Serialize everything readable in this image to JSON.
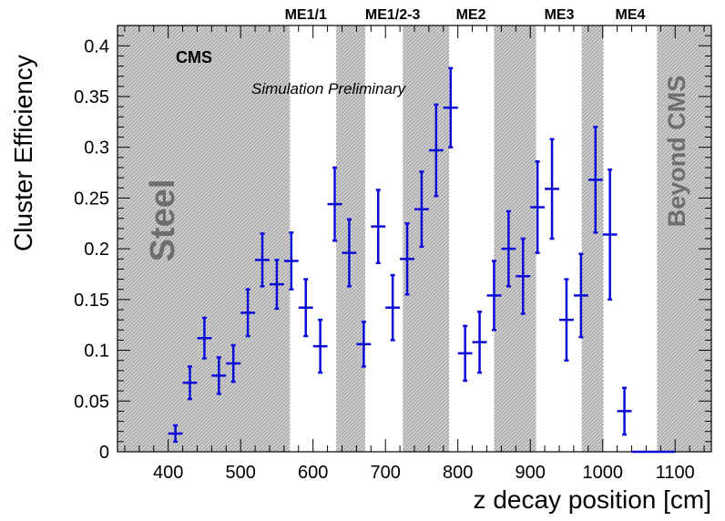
{
  "chart_data": {
    "type": "scatter",
    "xlabel": "z decay position [cm]",
    "ylabel": "Cluster Efficiency",
    "xlim": [
      330,
      1150
    ],
    "ylim": [
      0,
      0.42
    ],
    "grid": false,
    "legend": "none",
    "x_ticks": [
      400,
      500,
      600,
      700,
      800,
      900,
      1000,
      1100
    ],
    "y_ticks": [
      0,
      0.05,
      0.1,
      0.15,
      0.2,
      0.25,
      0.3,
      0.35,
      0.4
    ],
    "x_tick_labels": [
      "400",
      "500",
      "600",
      "700",
      "800",
      "900",
      "1000",
      "1100"
    ],
    "y_tick_labels": [
      "0",
      "0.05",
      "0.1",
      "0.15",
      "0.2",
      "0.25",
      "0.3",
      "0.35",
      "0.4"
    ],
    "points": [
      {
        "x": 410,
        "xerr": 10,
        "y": 0.018,
        "yerr": 0.008
      },
      {
        "x": 430,
        "xerr": 10,
        "y": 0.068,
        "yerr": 0.016
      },
      {
        "x": 450,
        "xerr": 10,
        "y": 0.112,
        "yerr": 0.02
      },
      {
        "x": 470,
        "xerr": 10,
        "y": 0.075,
        "yerr": 0.018
      },
      {
        "x": 490,
        "xerr": 10,
        "y": 0.087,
        "yerr": 0.018
      },
      {
        "x": 510,
        "xerr": 10,
        "y": 0.137,
        "yerr": 0.023
      },
      {
        "x": 530,
        "xerr": 10,
        "y": 0.189,
        "yerr": 0.026
      },
      {
        "x": 550,
        "xerr": 10,
        "y": 0.165,
        "yerr": 0.024
      },
      {
        "x": 570,
        "xerr": 10,
        "y": 0.188,
        "yerr": 0.028
      },
      {
        "x": 590,
        "xerr": 10,
        "y": 0.142,
        "yerr": 0.028
      },
      {
        "x": 610,
        "xerr": 10,
        "y": 0.104,
        "yerr": 0.026
      },
      {
        "x": 630,
        "xerr": 10,
        "y": 0.244,
        "yerr": 0.036
      },
      {
        "x": 650,
        "xerr": 10,
        "y": 0.196,
        "yerr": 0.033
      },
      {
        "x": 670,
        "xerr": 10,
        "y": 0.106,
        "yerr": 0.022
      },
      {
        "x": 690,
        "xerr": 10,
        "y": 0.222,
        "yerr": 0.036
      },
      {
        "x": 710,
        "xerr": 10,
        "y": 0.142,
        "yerr": 0.032
      },
      {
        "x": 730,
        "xerr": 10,
        "y": 0.19,
        "yerr": 0.035
      },
      {
        "x": 750,
        "xerr": 10,
        "y": 0.239,
        "yerr": 0.037
      },
      {
        "x": 770,
        "xerr": 10,
        "y": 0.297,
        "yerr": 0.045
      },
      {
        "x": 790,
        "xerr": 10,
        "y": 0.339,
        "yerr": 0.039
      },
      {
        "x": 810,
        "xerr": 10,
        "y": 0.097,
        "yerr": 0.027
      },
      {
        "x": 830,
        "xerr": 10,
        "y": 0.108,
        "yerr": 0.03
      },
      {
        "x": 850,
        "xerr": 10,
        "y": 0.154,
        "yerr": 0.034
      },
      {
        "x": 870,
        "xerr": 10,
        "y": 0.2,
        "yerr": 0.037
      },
      {
        "x": 890,
        "xerr": 10,
        "y": 0.173,
        "yerr": 0.037
      },
      {
        "x": 910,
        "xerr": 10,
        "y": 0.241,
        "yerr": 0.045
      },
      {
        "x": 930,
        "xerr": 10,
        "y": 0.259,
        "yerr": 0.049
      },
      {
        "x": 950,
        "xerr": 10,
        "y": 0.13,
        "yerr": 0.04
      },
      {
        "x": 970,
        "xerr": 10,
        "y": 0.154,
        "yerr": 0.041
      },
      {
        "x": 990,
        "xerr": 10,
        "y": 0.268,
        "yerr": 0.052
      },
      {
        "x": 1010,
        "xerr": 10,
        "y": 0.214,
        "yerr": 0.064
      },
      {
        "x": 1030,
        "xerr": 10,
        "y": 0.04,
        "yerr": 0.023
      },
      {
        "x": 1050,
        "xerr": 10,
        "y": 0.0,
        "yerr": 0.0
      },
      {
        "x": 1070,
        "xerr": 10,
        "y": 0.0,
        "yerr": 0.0
      },
      {
        "x": 1090,
        "xerr": 10,
        "y": 0.0,
        "yerr": 0.0
      }
    ],
    "hatched_regions": [
      {
        "x0": 330,
        "x1": 568
      },
      {
        "x0": 632,
        "x1": 672
      },
      {
        "x0": 724,
        "x1": 788
      },
      {
        "x0": 850,
        "x1": 908
      },
      {
        "x0": 971,
        "x1": 1001
      },
      {
        "x0": 1075,
        "x1": 1150
      }
    ],
    "station_labels": [
      {
        "text": "ME1/1",
        "x": 590
      },
      {
        "text": "ME1/2-3",
        "x": 710
      },
      {
        "text": "ME2",
        "x": 818
      },
      {
        "text": "ME3",
        "x": 940
      },
      {
        "text": "ME4",
        "x": 1038
      }
    ],
    "region_labels": {
      "steel": "Steel",
      "beyond": "Beyond CMS"
    },
    "annotations": {
      "cms": "CMS",
      "simulation": "Simulation Preliminary"
    },
    "colors": {
      "points": "#0b0bd8",
      "hatch": "#9a9a9a",
      "region_text": "#6e6e6e"
    }
  }
}
